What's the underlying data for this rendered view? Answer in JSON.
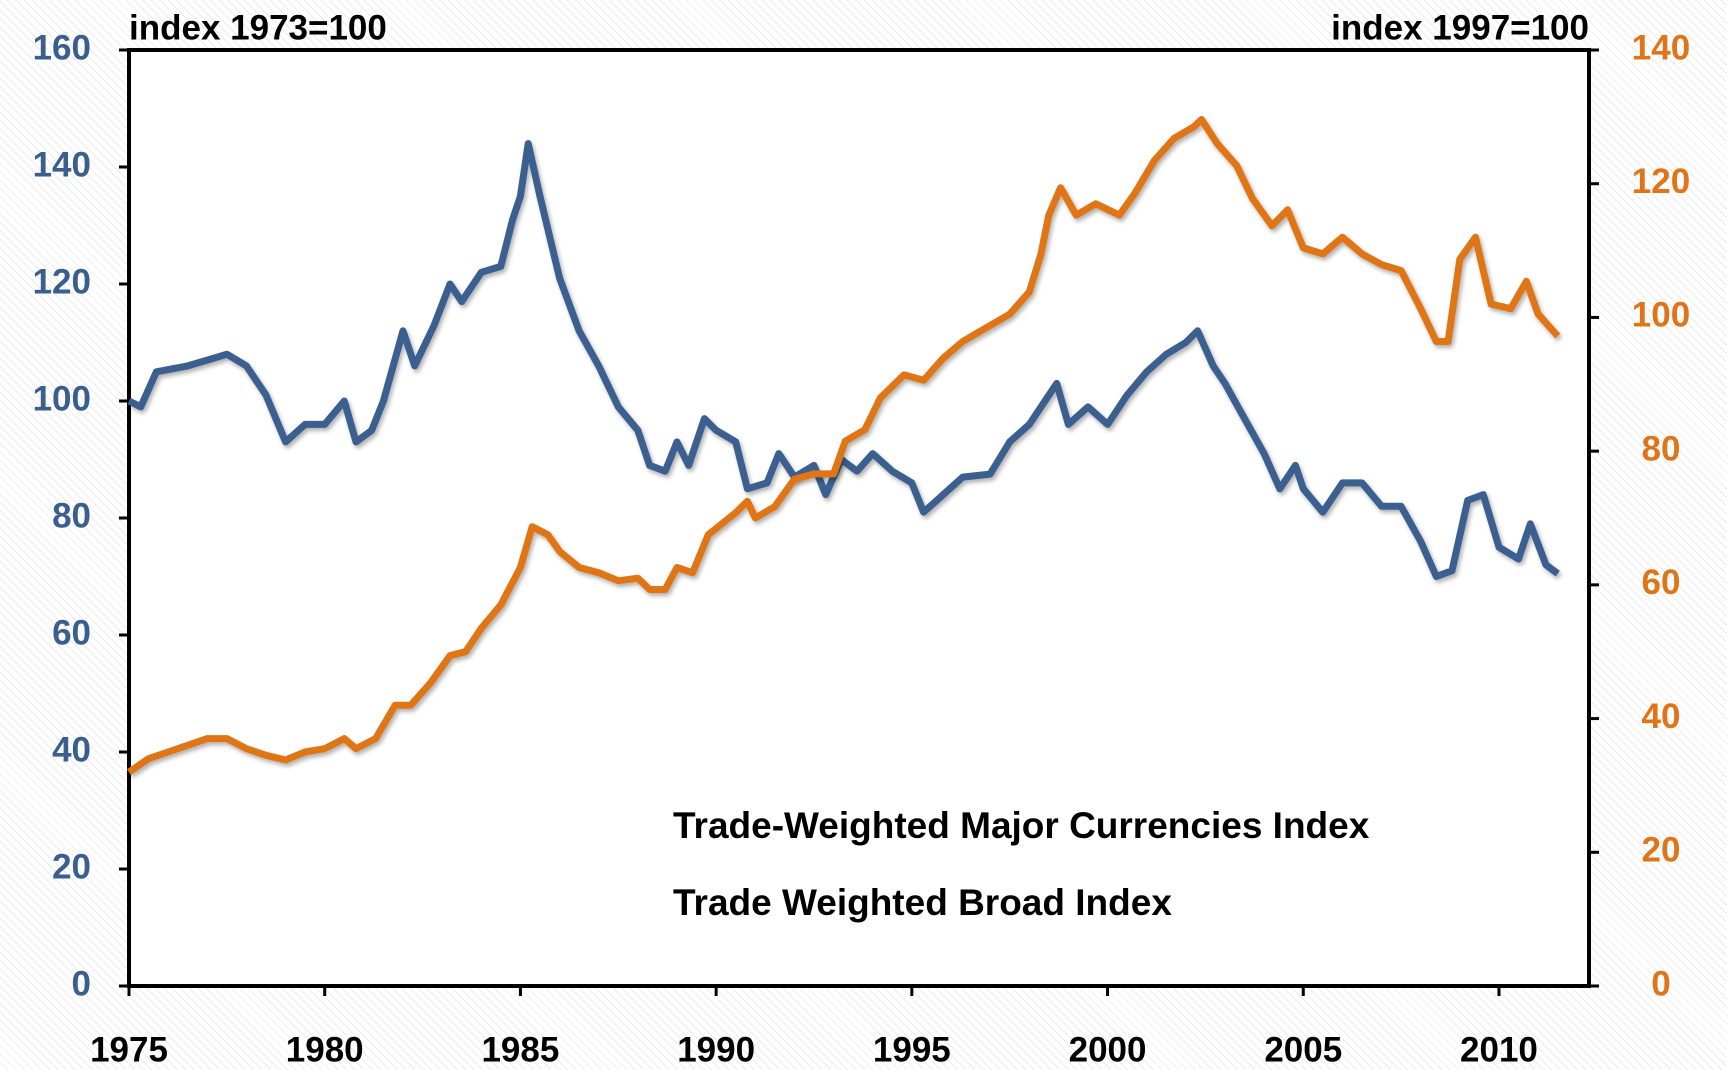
{
  "chart_data": {
    "type": "line",
    "y_axis_title": "index 1973=100",
    "y2_axis_title": "index 1997=100",
    "xlim": [
      1975,
      2012.3
    ],
    "xticks": [
      1975,
      1980,
      1985,
      1990,
      1995,
      2000,
      2005,
      2010
    ],
    "ylim": [
      0,
      160
    ],
    "yticks": [
      0,
      20,
      40,
      60,
      80,
      100,
      120,
      140,
      160
    ],
    "y2lim": [
      0,
      140
    ],
    "y2ticks": [
      0,
      20,
      40,
      60,
      80,
      100,
      120,
      140
    ],
    "legend": "lower right",
    "series": [
      {
        "name": "Trade-Weighted Major Currencies Index",
        "color": "#3a5f8f",
        "axis": "y",
        "x": [
          1975.0,
          1975.3,
          1975.7,
          1976.5,
          1977.0,
          1977.5,
          1978.0,
          1978.5,
          1979.0,
          1979.5,
          1980.0,
          1980.5,
          1980.8,
          1981.2,
          1981.5,
          1982.0,
          1982.3,
          1982.8,
          1983.2,
          1983.5,
          1984.0,
          1984.5,
          1984.8,
          1985.0,
          1985.2,
          1985.5,
          1986.0,
          1986.5,
          1987.0,
          1987.5,
          1988.0,
          1988.3,
          1988.7,
          1989.0,
          1989.3,
          1989.7,
          1990.0,
          1990.5,
          1990.8,
          1991.3,
          1991.6,
          1992.0,
          1992.5,
          1992.8,
          1993.2,
          1993.6,
          1994.0,
          1994.5,
          1995.0,
          1995.3,
          1995.8,
          1996.3,
          1997.0,
          1997.5,
          1998.0,
          1998.7,
          1999.0,
          1999.5,
          2000.0,
          2000.5,
          2001.0,
          2001.5,
          2002.0,
          2002.3,
          2002.7,
          2003.0,
          2003.5,
          2004.0,
          2004.4,
          2004.8,
          2005.0,
          2005.5,
          2006.0,
          2006.5,
          2007.0,
          2007.5,
          2008.0,
          2008.4,
          2008.8,
          2009.2,
          2009.6,
          2010.0,
          2010.5,
          2010.8,
          2011.2,
          2011.5
        ],
        "values": [
          100,
          99,
          105,
          106,
          107,
          108,
          106,
          101,
          93,
          96,
          96,
          100,
          93,
          95,
          100,
          112,
          106,
          113,
          120,
          117,
          122,
          123,
          131,
          135,
          144,
          135,
          121,
          112,
          106,
          99,
          95,
          89,
          88,
          93,
          89,
          97,
          95,
          93,
          85,
          86,
          91,
          87,
          89,
          84,
          90,
          88,
          91,
          88,
          86,
          81,
          84,
          87,
          87.5,
          93,
          96,
          103,
          96,
          99,
          96,
          101,
          105,
          108,
          110,
          112,
          106,
          103,
          97,
          91,
          85,
          89,
          85,
          81,
          86,
          86,
          82,
          82,
          76,
          70,
          71,
          83,
          84,
          75,
          73,
          79,
          72,
          70.5
        ]
      },
      {
        "name": "Trade Weighted Broad Index",
        "color": "#e07418",
        "axis": "y2",
        "x": [
          1975.0,
          1975.5,
          1976.0,
          1977.0,
          1977.5,
          1978.0,
          1978.5,
          1979.0,
          1979.5,
          1980.0,
          1980.5,
          1980.8,
          1981.3,
          1981.8,
          1982.2,
          1982.7,
          1983.2,
          1983.6,
          1984.0,
          1984.5,
          1985.0,
          1985.3,
          1985.7,
          1986.0,
          1986.5,
          1987.0,
          1987.5,
          1988.0,
          1988.3,
          1988.7,
          1989.0,
          1989.4,
          1989.8,
          1990.5,
          1990.8,
          1991.0,
          1991.5,
          1992.0,
          1992.5,
          1993.0,
          1993.3,
          1993.8,
          1994.2,
          1994.8,
          1995.3,
          1995.8,
          1996.3,
          1997.0,
          1997.5,
          1998.0,
          1998.3,
          1998.5,
          1998.8,
          1999.2,
          1999.7,
          2000.3,
          2000.7,
          2001.2,
          2001.7,
          2002.2,
          2002.4,
          2002.8,
          2003.3,
          2003.7,
          2004.2,
          2004.6,
          2005.0,
          2005.5,
          2006.0,
          2006.5,
          2007.0,
          2007.5,
          2008.0,
          2008.4,
          2008.7,
          2009.0,
          2009.4,
          2009.8,
          2010.3,
          2010.7,
          2011.0,
          2011.5
        ],
        "values": [
          32,
          34,
          35,
          37,
          37,
          35.5,
          34.5,
          33.8,
          35,
          35.5,
          37,
          35.5,
          37,
          42,
          42,
          45.3,
          49.4,
          50,
          53.5,
          57,
          62.6,
          68.7,
          67.5,
          65,
          62.6,
          61.8,
          60.6,
          61,
          59.3,
          59.3,
          62.6,
          61.8,
          67.5,
          70.8,
          72.5,
          70,
          71.7,
          75.8,
          76.6,
          76.6,
          81.5,
          83.2,
          88,
          91.4,
          90.6,
          93.9,
          96.4,
          98.8,
          100.5,
          103.8,
          109.5,
          115.3,
          119.4,
          115.3,
          117,
          115.3,
          118.6,
          123.5,
          126.8,
          128.5,
          129.6,
          126,
          122.7,
          117.8,
          113.7,
          116.1,
          110.4,
          109.5,
          112,
          109.5,
          107.9,
          107,
          101.3,
          96.4,
          96.4,
          108.7,
          112,
          102,
          101.3,
          105.4,
          100.5,
          97.2
        ]
      }
    ]
  }
}
